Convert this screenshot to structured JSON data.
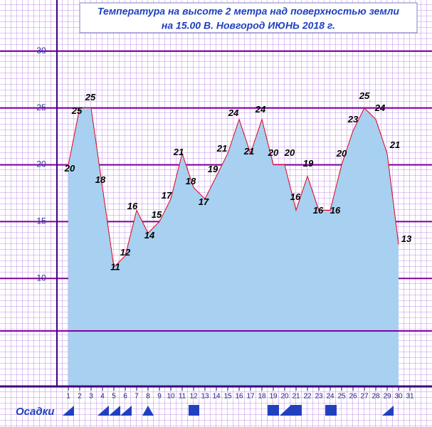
{
  "chart_data": {
    "type": "area",
    "title": [
      "Температура  на  высоте  2  метра  над  поверхностью  земли",
      "на  15.00  В. Новгород  ИЮНЬ  2018  г."
    ],
    "x": [
      1,
      2,
      3,
      4,
      5,
      6,
      7,
      8,
      9,
      10,
      11,
      12,
      13,
      14,
      15,
      16,
      17,
      18,
      19,
      20,
      21,
      22,
      23,
      24,
      25,
      26,
      27,
      28,
      29,
      30
    ],
    "series": [
      {
        "name": "Температура",
        "color": "#e00020",
        "values": [
          20,
          25,
          25,
          18,
          11,
          12,
          16,
          14,
          15,
          17,
          21,
          18,
          17,
          19,
          21,
          24,
          21,
          24,
          20,
          20,
          16,
          19,
          16,
          16,
          20,
          23,
          25,
          24,
          21,
          13
        ]
      }
    ],
    "xlim": [
      0,
      32
    ],
    "xticks": [
      1,
      2,
      3,
      4,
      5,
      6,
      7,
      8,
      9,
      10,
      11,
      12,
      13,
      14,
      15,
      16,
      17,
      18,
      19,
      20,
      21,
      22,
      23,
      24,
      25,
      26,
      27,
      28,
      29,
      30,
      31
    ],
    "ylim": [
      0.5,
      34.5
    ],
    "yticks": [
      10,
      15,
      20,
      25,
      30
    ],
    "grid": true,
    "precipitation_label": "Осадки"
  }
}
